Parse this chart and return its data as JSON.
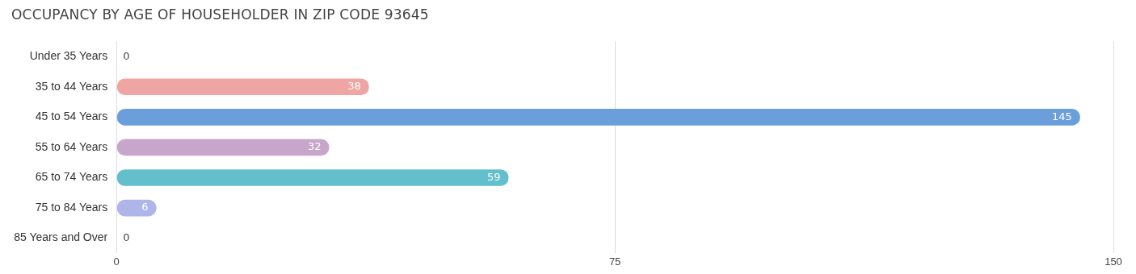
{
  "chart_data": {
    "type": "bar",
    "orientation": "horizontal",
    "title": "OCCUPANCY BY AGE OF HOUSEHOLDER IN ZIP CODE 93645",
    "categories": [
      "Under 35 Years",
      "35 to 44 Years",
      "45 to 54 Years",
      "55 to 64 Years",
      "65 to 74 Years",
      "75 to 84 Years",
      "85 Years and Over"
    ],
    "values": [
      0,
      38,
      145,
      32,
      59,
      6,
      0
    ],
    "colors": [
      "#f9c89c",
      "#eea5a3",
      "#6a9fdc",
      "#c8a6cb",
      "#62bfcb",
      "#aeb5e9",
      "#f5a5c3"
    ],
    "xlim": [
      0,
      150
    ],
    "xticks": [
      0,
      75,
      150
    ],
    "grid": "x",
    "legend": false,
    "data_labels": true
  }
}
